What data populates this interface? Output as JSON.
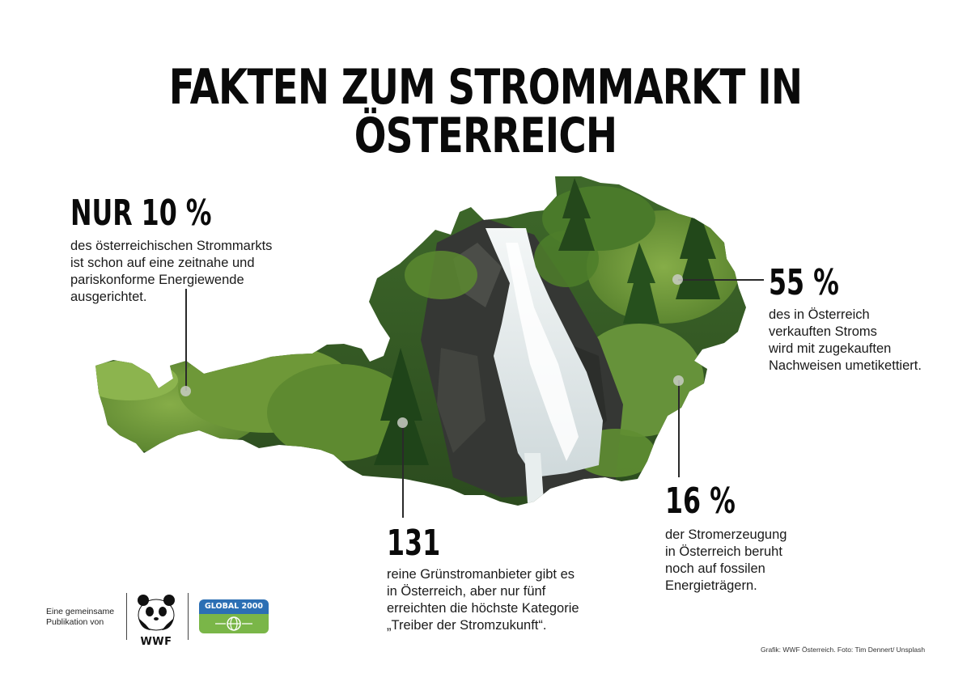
{
  "title": "FAKTEN ZUM STROMMARKT IN ÖSTERREICH",
  "facts": {
    "f10": {
      "value": "NUR 10 %",
      "lines": [
        "des österreichischen Strommarkts",
        "ist schon auf eine zeitnahe und",
        "pariskonforme Energiewende",
        "ausgerichtet."
      ]
    },
    "f55": {
      "value": "55 %",
      "lines": [
        "des in Österreich",
        "verkauften Stroms",
        "wird mit zugekauften",
        "Nachweisen umetikettiert."
      ]
    },
    "f16": {
      "value": "16 %",
      "lines": [
        "der Stromerzeugung",
        "in Österreich beruht",
        "noch auf fossilen",
        "Energieträgern."
      ]
    },
    "f131": {
      "value": "131",
      "lines": [
        "reine Grünstromanbieter gibt es",
        "in Österreich, aber nur fünf",
        "erreichten die höchste Kategorie",
        "„Treiber der Stromzukunft“."
      ]
    }
  },
  "footer": {
    "publication_line1": "Eine gemeinsame",
    "publication_line2": "Publikation von",
    "wwf_label": "WWF",
    "global2000_label": "GLOBAL 2000"
  },
  "credit": "Grafik: WWF Österreich. Foto: Tim Dennert/ Unsplash",
  "colors": {
    "forest": "#2f5a24",
    "grass": "#6f9a3a",
    "rock": "#3b3d39",
    "water": "#eef2f2",
    "global2000_blue": "#2c6fb4",
    "global2000_green": "#7ab648"
  }
}
